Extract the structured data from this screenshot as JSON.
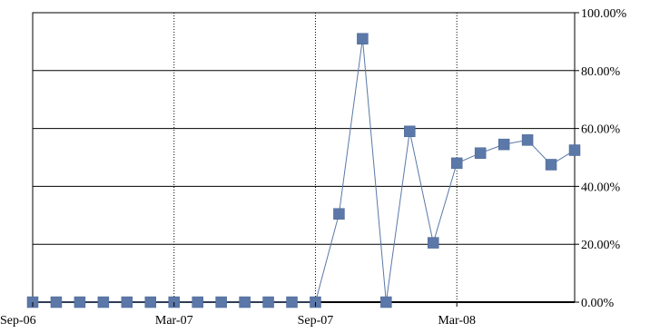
{
  "chart_data": {
    "type": "line",
    "title": "",
    "xlabel": "",
    "ylabel": "",
    "x_tick_labels": [
      "Sep-06",
      "Mar-07",
      "Sep-07",
      "Mar-08"
    ],
    "y_tick_labels": [
      "0.00%",
      "20.00%",
      "40.00%",
      "60.00%",
      "80.00%",
      "100.00%"
    ],
    "ylim": [
      0,
      100
    ],
    "y_axis_position": "right",
    "grid": {
      "x": "dotted",
      "y": "solid"
    },
    "legend": "none",
    "series": [
      {
        "color": "#5b78a8",
        "marker": "square",
        "x": [
          "Sep-06",
          "Oct-06",
          "Nov-06",
          "Dec-06",
          "Jan-07",
          "Feb-07",
          "Mar-07",
          "Apr-07",
          "May-07",
          "Jun-07",
          "Jul-07",
          "Aug-07",
          "Sep-07",
          "Oct-07",
          "Nov-07",
          "Dec-07",
          "Jan-08",
          "Feb-08",
          "Mar-08",
          "Apr-08",
          "May-08",
          "Jun-08",
          "Jul-08",
          "Aug-08"
        ],
        "values": [
          0,
          0,
          0,
          0,
          0,
          0,
          0,
          0,
          0,
          0,
          0,
          0,
          0,
          30.5,
          91,
          0,
          59,
          20.5,
          48,
          51.5,
          54.5,
          56,
          47.5,
          52.5
        ]
      }
    ]
  }
}
